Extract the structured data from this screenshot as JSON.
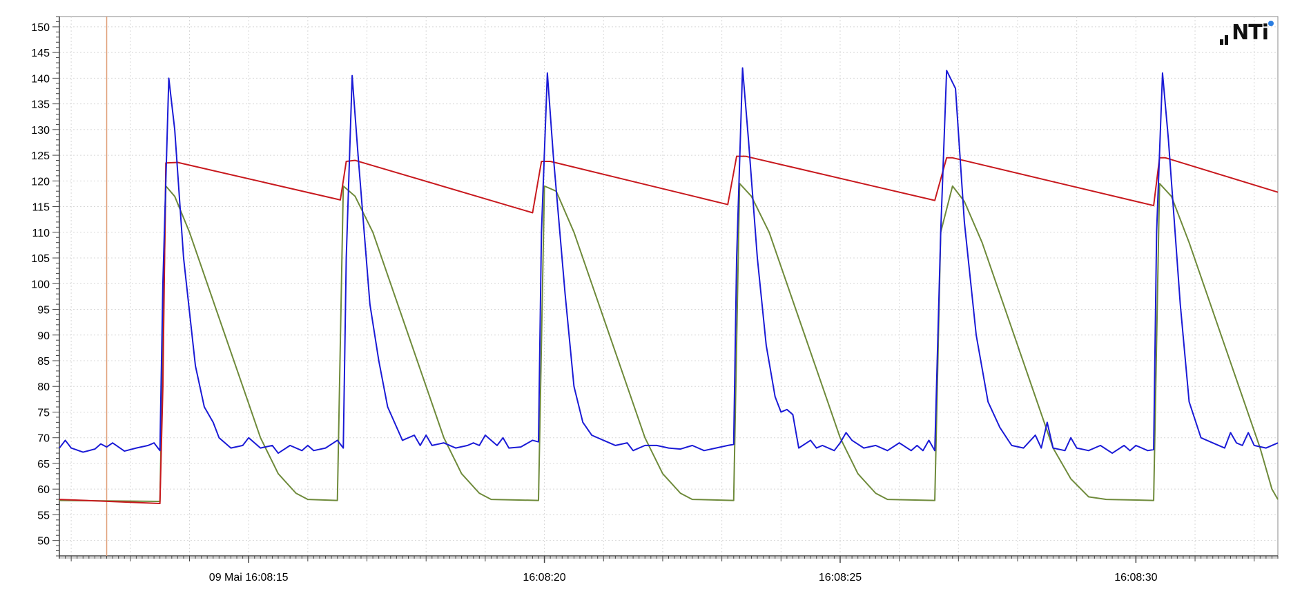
{
  "logo_text": "NTi",
  "colors": {
    "blue": "#1a1ad6",
    "red": "#c8191e",
    "green": "#6e8a3a",
    "cursor": "#e0a07a",
    "grid": "#d8d8d8",
    "axis": "#444444",
    "logo_dot": "#2a7de1"
  },
  "chart_data": {
    "type": "line",
    "x_unit": "seconds",
    "xlim": [
      11.8,
      32.4
    ],
    "ylim": [
      47,
      152
    ],
    "y_ticks": [
      50,
      55,
      60,
      65,
      70,
      75,
      80,
      85,
      90,
      95,
      100,
      105,
      110,
      115,
      120,
      125,
      130,
      135,
      140,
      145,
      150
    ],
    "x_ticks": [
      {
        "x": 15,
        "label": "09 Mai 16:08:15"
      },
      {
        "x": 20,
        "label": "16:08:20"
      },
      {
        "x": 25,
        "label": "16:08:25"
      },
      {
        "x": 30,
        "label": "16:08:30"
      }
    ],
    "cursor_x": 12.6,
    "grid": true,
    "series": [
      {
        "color_key": "blue",
        "points": [
          [
            11.8,
            68
          ],
          [
            11.9,
            69.5
          ],
          [
            12.0,
            68
          ],
          [
            12.2,
            67.2
          ],
          [
            12.4,
            67.8
          ],
          [
            12.5,
            68.8
          ],
          [
            12.6,
            68.2
          ],
          [
            12.7,
            69
          ],
          [
            12.9,
            67.4
          ],
          [
            13.1,
            68
          ],
          [
            13.3,
            68.5
          ],
          [
            13.4,
            69
          ],
          [
            13.5,
            67.5
          ],
          [
            13.55,
            100
          ],
          [
            13.65,
            140
          ],
          [
            13.75,
            130
          ],
          [
            13.9,
            105
          ],
          [
            14.1,
            84
          ],
          [
            14.25,
            76
          ],
          [
            14.4,
            73
          ],
          [
            14.5,
            70
          ],
          [
            14.7,
            68
          ],
          [
            14.9,
            68.5
          ],
          [
            15.0,
            70
          ],
          [
            15.2,
            68
          ],
          [
            15.4,
            68.5
          ],
          [
            15.5,
            67
          ],
          [
            15.7,
            68.5
          ],
          [
            15.9,
            67.5
          ],
          [
            16.0,
            68.5
          ],
          [
            16.1,
            67.5
          ],
          [
            16.3,
            68
          ],
          [
            16.5,
            69.5
          ],
          [
            16.6,
            68
          ],
          [
            16.65,
            105
          ],
          [
            16.75,
            140.5
          ],
          [
            16.85,
            125
          ],
          [
            17.05,
            96
          ],
          [
            17.2,
            85
          ],
          [
            17.35,
            76
          ],
          [
            17.6,
            69.5
          ],
          [
            17.8,
            70.5
          ],
          [
            17.9,
            68.5
          ],
          [
            18.0,
            70.5
          ],
          [
            18.1,
            68.5
          ],
          [
            18.3,
            69
          ],
          [
            18.5,
            68
          ],
          [
            18.7,
            68.5
          ],
          [
            18.8,
            69
          ],
          [
            18.9,
            68.5
          ],
          [
            19.0,
            70.5
          ],
          [
            19.2,
            68.5
          ],
          [
            19.3,
            70
          ],
          [
            19.4,
            68
          ],
          [
            19.6,
            68.2
          ],
          [
            19.8,
            69.5
          ],
          [
            19.9,
            69.2
          ],
          [
            19.95,
            110
          ],
          [
            20.05,
            141
          ],
          [
            20.15,
            125
          ],
          [
            20.35,
            98
          ],
          [
            20.5,
            80
          ],
          [
            20.65,
            73
          ],
          [
            20.8,
            70.5
          ],
          [
            21.0,
            69.5
          ],
          [
            21.2,
            68.5
          ],
          [
            21.4,
            69
          ],
          [
            21.5,
            67.5
          ],
          [
            21.7,
            68.5
          ],
          [
            21.9,
            68.5
          ],
          [
            22.1,
            68
          ],
          [
            22.3,
            67.8
          ],
          [
            22.5,
            68.5
          ],
          [
            22.7,
            67.5
          ],
          [
            22.9,
            68
          ],
          [
            23.1,
            68.5
          ],
          [
            23.2,
            68.7
          ],
          [
            23.25,
            105
          ],
          [
            23.35,
            142
          ],
          [
            23.45,
            128
          ],
          [
            23.6,
            105
          ],
          [
            23.75,
            88
          ],
          [
            23.9,
            78
          ],
          [
            24.0,
            75
          ],
          [
            24.1,
            75.5
          ],
          [
            24.2,
            74.5
          ],
          [
            24.3,
            68
          ],
          [
            24.5,
            69.5
          ],
          [
            24.6,
            68
          ],
          [
            24.7,
            68.5
          ],
          [
            24.9,
            67.5
          ],
          [
            25.0,
            69
          ],
          [
            25.1,
            71
          ],
          [
            25.2,
            69.5
          ],
          [
            25.4,
            68
          ],
          [
            25.6,
            68.5
          ],
          [
            25.8,
            67.5
          ],
          [
            26.0,
            69
          ],
          [
            26.2,
            67.5
          ],
          [
            26.3,
            68.5
          ],
          [
            26.4,
            67.5
          ],
          [
            26.5,
            69.5
          ],
          [
            26.6,
            67.5
          ],
          [
            26.7,
            110
          ],
          [
            26.8,
            141.5
          ],
          [
            26.95,
            138
          ],
          [
            27.1,
            112
          ],
          [
            27.3,
            90
          ],
          [
            27.5,
            77
          ],
          [
            27.7,
            72
          ],
          [
            27.9,
            68.5
          ],
          [
            28.1,
            68
          ],
          [
            28.3,
            70.5
          ],
          [
            28.4,
            68
          ],
          [
            28.5,
            73
          ],
          [
            28.6,
            68
          ],
          [
            28.8,
            67.5
          ],
          [
            28.9,
            70
          ],
          [
            29.0,
            68
          ],
          [
            29.2,
            67.5
          ],
          [
            29.4,
            68.5
          ],
          [
            29.6,
            67
          ],
          [
            29.8,
            68.5
          ],
          [
            29.9,
            67.5
          ],
          [
            30.0,
            68.5
          ],
          [
            30.2,
            67.5
          ],
          [
            30.3,
            67.7
          ],
          [
            30.35,
            110
          ],
          [
            30.45,
            141
          ],
          [
            30.55,
            128
          ],
          [
            30.75,
            96
          ],
          [
            30.9,
            77
          ],
          [
            31.1,
            70
          ],
          [
            31.3,
            69
          ],
          [
            31.5,
            68
          ],
          [
            31.6,
            71
          ],
          [
            31.7,
            69
          ],
          [
            31.8,
            68.5
          ],
          [
            31.9,
            71
          ],
          [
            32.0,
            68.5
          ],
          [
            32.2,
            68
          ],
          [
            32.4,
            69
          ]
        ]
      },
      {
        "color_key": "red",
        "points": [
          [
            11.8,
            58
          ],
          [
            13.5,
            57.2
          ],
          [
            13.55,
            80
          ],
          [
            13.6,
            123.5
          ],
          [
            13.8,
            123.6
          ],
          [
            16.55,
            116.3
          ],
          [
            16.65,
            123.8
          ],
          [
            16.8,
            124
          ],
          [
            19.8,
            113.8
          ],
          [
            19.95,
            123.8
          ],
          [
            20.1,
            123.8
          ],
          [
            23.1,
            115.4
          ],
          [
            23.25,
            124.8
          ],
          [
            23.4,
            124.8
          ],
          [
            26.6,
            116.2
          ],
          [
            26.8,
            124.5
          ],
          [
            26.9,
            124.5
          ],
          [
            30.3,
            115.2
          ],
          [
            30.4,
            124.5
          ],
          [
            30.5,
            124.5
          ],
          [
            32.4,
            117.8
          ]
        ]
      },
      {
        "color_key": "green",
        "points": [
          [
            11.8,
            57.8
          ],
          [
            13.5,
            57.6
          ],
          [
            13.6,
            119
          ],
          [
            13.75,
            117
          ],
          [
            14.0,
            110
          ],
          [
            14.3,
            100
          ],
          [
            14.6,
            90
          ],
          [
            14.9,
            80
          ],
          [
            15.2,
            70
          ],
          [
            15.5,
            63
          ],
          [
            15.8,
            59.2
          ],
          [
            16.0,
            58
          ],
          [
            16.5,
            57.8
          ],
          [
            16.6,
            119
          ],
          [
            16.8,
            117
          ],
          [
            17.1,
            110
          ],
          [
            17.4,
            100
          ],
          [
            17.7,
            90
          ],
          [
            18.0,
            80
          ],
          [
            18.3,
            70
          ],
          [
            18.6,
            63
          ],
          [
            18.9,
            59.2
          ],
          [
            19.1,
            58
          ],
          [
            19.9,
            57.8
          ],
          [
            20.0,
            119
          ],
          [
            20.2,
            118
          ],
          [
            20.5,
            110
          ],
          [
            20.8,
            100
          ],
          [
            21.1,
            90
          ],
          [
            21.4,
            80
          ],
          [
            21.7,
            70
          ],
          [
            22.0,
            63
          ],
          [
            22.3,
            59.2
          ],
          [
            22.5,
            58
          ],
          [
            23.2,
            57.8
          ],
          [
            23.3,
            119.5
          ],
          [
            23.5,
            117
          ],
          [
            23.8,
            110
          ],
          [
            24.1,
            100
          ],
          [
            24.4,
            90
          ],
          [
            24.7,
            80
          ],
          [
            25.0,
            70
          ],
          [
            25.3,
            63
          ],
          [
            25.6,
            59.2
          ],
          [
            25.8,
            58
          ],
          [
            26.6,
            57.8
          ],
          [
            26.7,
            110
          ],
          [
            26.9,
            119
          ],
          [
            27.1,
            116
          ],
          [
            27.4,
            108
          ],
          [
            27.7,
            98
          ],
          [
            28.0,
            88
          ],
          [
            28.3,
            78
          ],
          [
            28.6,
            68
          ],
          [
            28.9,
            62
          ],
          [
            29.2,
            58.5
          ],
          [
            29.5,
            58
          ],
          [
            30.3,
            57.8
          ],
          [
            30.4,
            119.5
          ],
          [
            30.6,
            117
          ],
          [
            30.9,
            108
          ],
          [
            31.2,
            98
          ],
          [
            31.5,
            88
          ],
          [
            31.8,
            78
          ],
          [
            32.1,
            68
          ],
          [
            32.3,
            60
          ],
          [
            32.4,
            58
          ]
        ]
      }
    ]
  }
}
